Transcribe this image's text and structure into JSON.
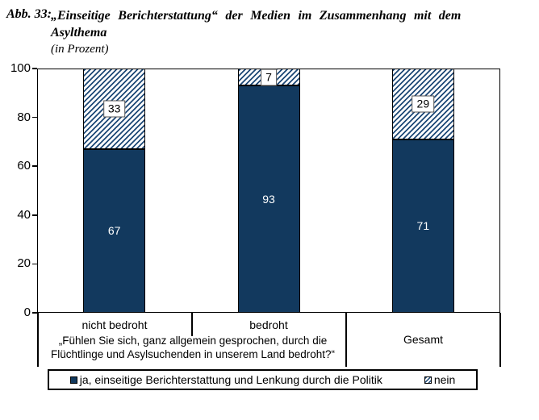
{
  "title": {
    "prefix": "Abb. 33:",
    "line1": "„Einseitige Berichterstattung“ der Medien im Zusammenhang mit dem",
    "line2": "Asylthema",
    "subtitle": "(in Prozent)"
  },
  "colors": {
    "ja_fill": "#12395e",
    "nein_hatch_stripe": "#1d4876",
    "bar_border": "#000000",
    "value_label_on_bar": "#ffffff",
    "value_label_on_hatch": "#000000"
  },
  "chart_data": {
    "type": "bar",
    "stacked": true,
    "title": "„Einseitige Berichterstattung“ der Medien im Zusammenhang mit dem Asylthema (in Prozent)",
    "categories": [
      "nicht bedroht",
      "bedroht",
      "Gesamt"
    ],
    "series": [
      {
        "name": "ja, einseitige Berichterstattung und Lenkung durch die Politik",
        "values": [
          67,
          93,
          71
        ],
        "style": "solid-navy"
      },
      {
        "name": "nein",
        "values": [
          33,
          7,
          29
        ],
        "style": "diagonal-hatch"
      }
    ],
    "xlabel": "",
    "ylabel": "",
    "ylim": [
      0,
      100
    ],
    "yticks": [
      0,
      20,
      40,
      60,
      80,
      100
    ],
    "grid": false,
    "legend_position": "bottom"
  },
  "x_axis_note": {
    "question": "„Fühlen Sie sich, ganz allgemein gesprochen, durch die Flüchtlinge und Asylsuchenden in unserem Land bedroht?“"
  }
}
